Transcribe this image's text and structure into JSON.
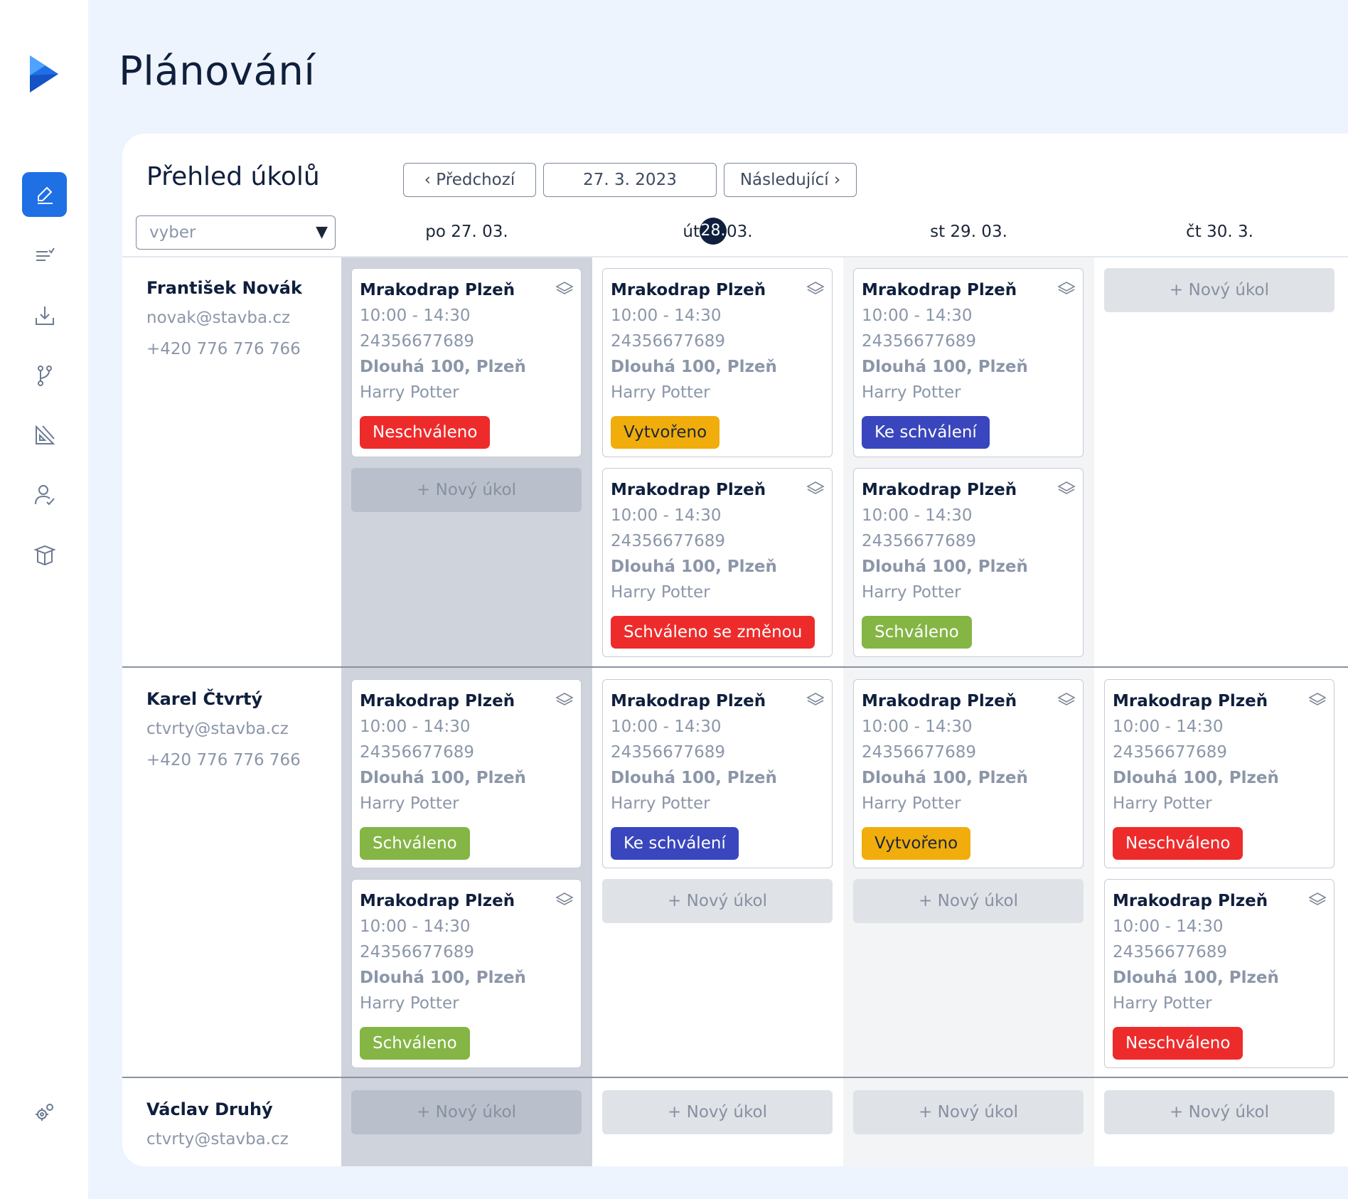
{
  "page": {
    "title": "Plánování"
  },
  "sidebar": {
    "icons": [
      "edit-icon",
      "list-check-icon",
      "download-icon",
      "branch-icon",
      "drafting-icon",
      "user-check-icon",
      "box-icon"
    ],
    "settings_icon": "gears-icon"
  },
  "overview": {
    "title": "Přehled úkolů",
    "prev_label": "‹ Předchozí",
    "date_value": "27. 3. 2023",
    "next_label": "Následující ›",
    "select_placeholder": "vyber",
    "select_caret": "▼"
  },
  "days": [
    {
      "before": "po 27. 03.",
      "num": "",
      "after": ""
    },
    {
      "before": "út",
      "num": "28.",
      "after": "03."
    },
    {
      "before": "st 29. 03.",
      "num": "",
      "after": ""
    },
    {
      "before": "čt 30. 3.",
      "num": "",
      "after": ""
    }
  ],
  "new_task_label": "+ Nový úkol",
  "task": {
    "title": "Mrakodrap Plzeň",
    "time": "10:00 - 14:30",
    "code": "24356677689",
    "address": "Dlouhá 100, Plzeň",
    "person": "Harry Potter"
  },
  "status_colors": {
    "red": "#ee2b2b",
    "yellow": "#f1ad0c",
    "blue": "#3946bd",
    "green": "#84b545"
  },
  "people": [
    {
      "name": "František Novák",
      "email": "novak@stavba.cz",
      "phone": "+420 776 776 766"
    },
    {
      "name": "Karel Čtvrtý",
      "email": "ctvrty@stavba.cz",
      "phone": "+420 776 776 766"
    },
    {
      "name": "Václav Druhý",
      "email": "ctvrty@stavba.cz"
    }
  ],
  "statuses": {
    "r0c0a": "Neschváleno",
    "r0c1a": "Vytvořeno",
    "r0c1b": "Schváleno se změnou",
    "r0c2a": "Ke schválení",
    "r0c2b": "Schváleno",
    "r1c0a": "Schváleno",
    "r1c0b": "Schváleno",
    "r1c1a": "Ke schválení",
    "r1c2a": "Vytvořeno",
    "r1c3a": "Neschváleno",
    "r1c3b": "Neschváleno"
  }
}
